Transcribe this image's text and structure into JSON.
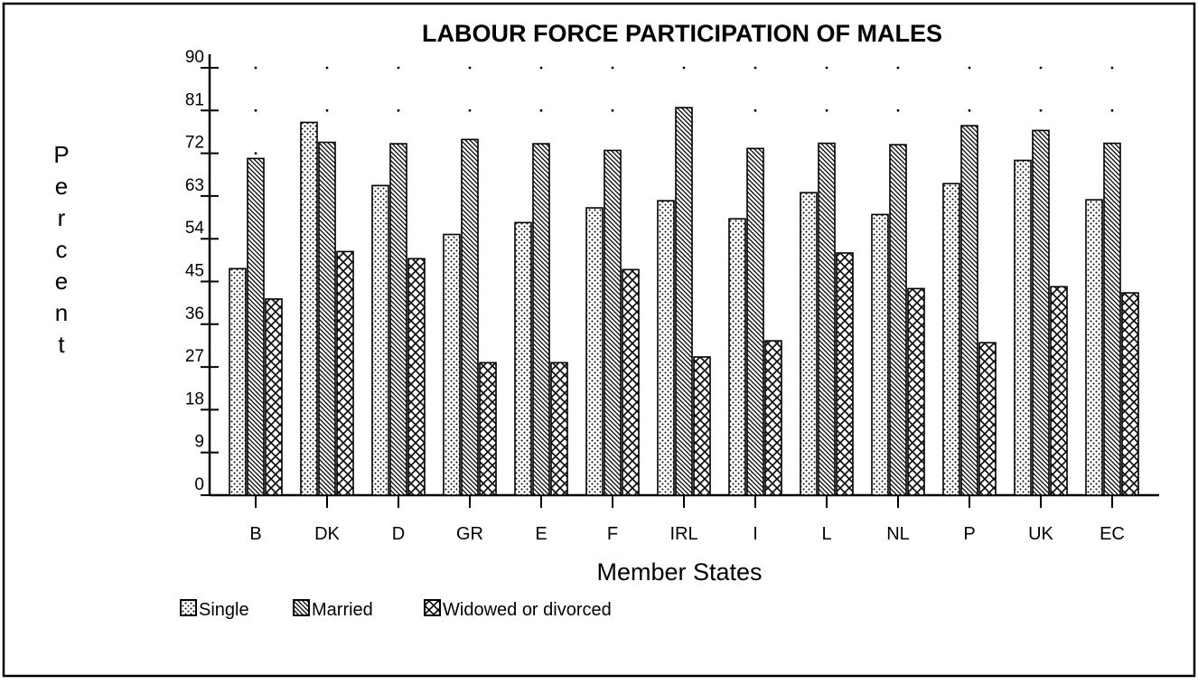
{
  "chart_data": {
    "type": "bar",
    "title": "LABOUR FORCE PARTICIPATION OF MALES",
    "x_label": "Member States",
    "y_label": "Percent",
    "categories": [
      "B",
      "DK",
      "D",
      "GR",
      "E",
      "F",
      "IRL",
      "I",
      "L",
      "NL",
      "P",
      "UK",
      "EC"
    ],
    "series": [
      {
        "name": "Single",
        "color": "#000000",
        "pattern": "dots",
        "values": [
          47.7,
          78.5,
          65.2,
          54.9,
          57.4,
          60.5,
          62,
          58.2,
          63.7,
          59.1,
          65.6,
          70.5,
          62.2
        ]
      },
      {
        "name": "Married",
        "color": "#000000",
        "pattern": "diagonal",
        "values": [
          70.9,
          74.3,
          74,
          74.9,
          74,
          72.6,
          81.6,
          73,
          74.1,
          73.8,
          77.8,
          76.8,
          74.1
        ]
      },
      {
        "name": "Widowed or divorced",
        "color": "#000000",
        "pattern": "crosshatch",
        "values": [
          41.3,
          51.3,
          49.8,
          27.9,
          27.9,
          47.5,
          29.1,
          32.5,
          51,
          43.5,
          32.1,
          43.9,
          42.6
        ]
      }
    ],
    "ylim": [
      0,
      90
    ],
    "yticks": [
      0,
      9,
      18,
      27,
      36,
      45,
      54,
      63,
      72,
      81,
      90
    ],
    "grid": "dotted",
    "legend": "bottom-left"
  }
}
